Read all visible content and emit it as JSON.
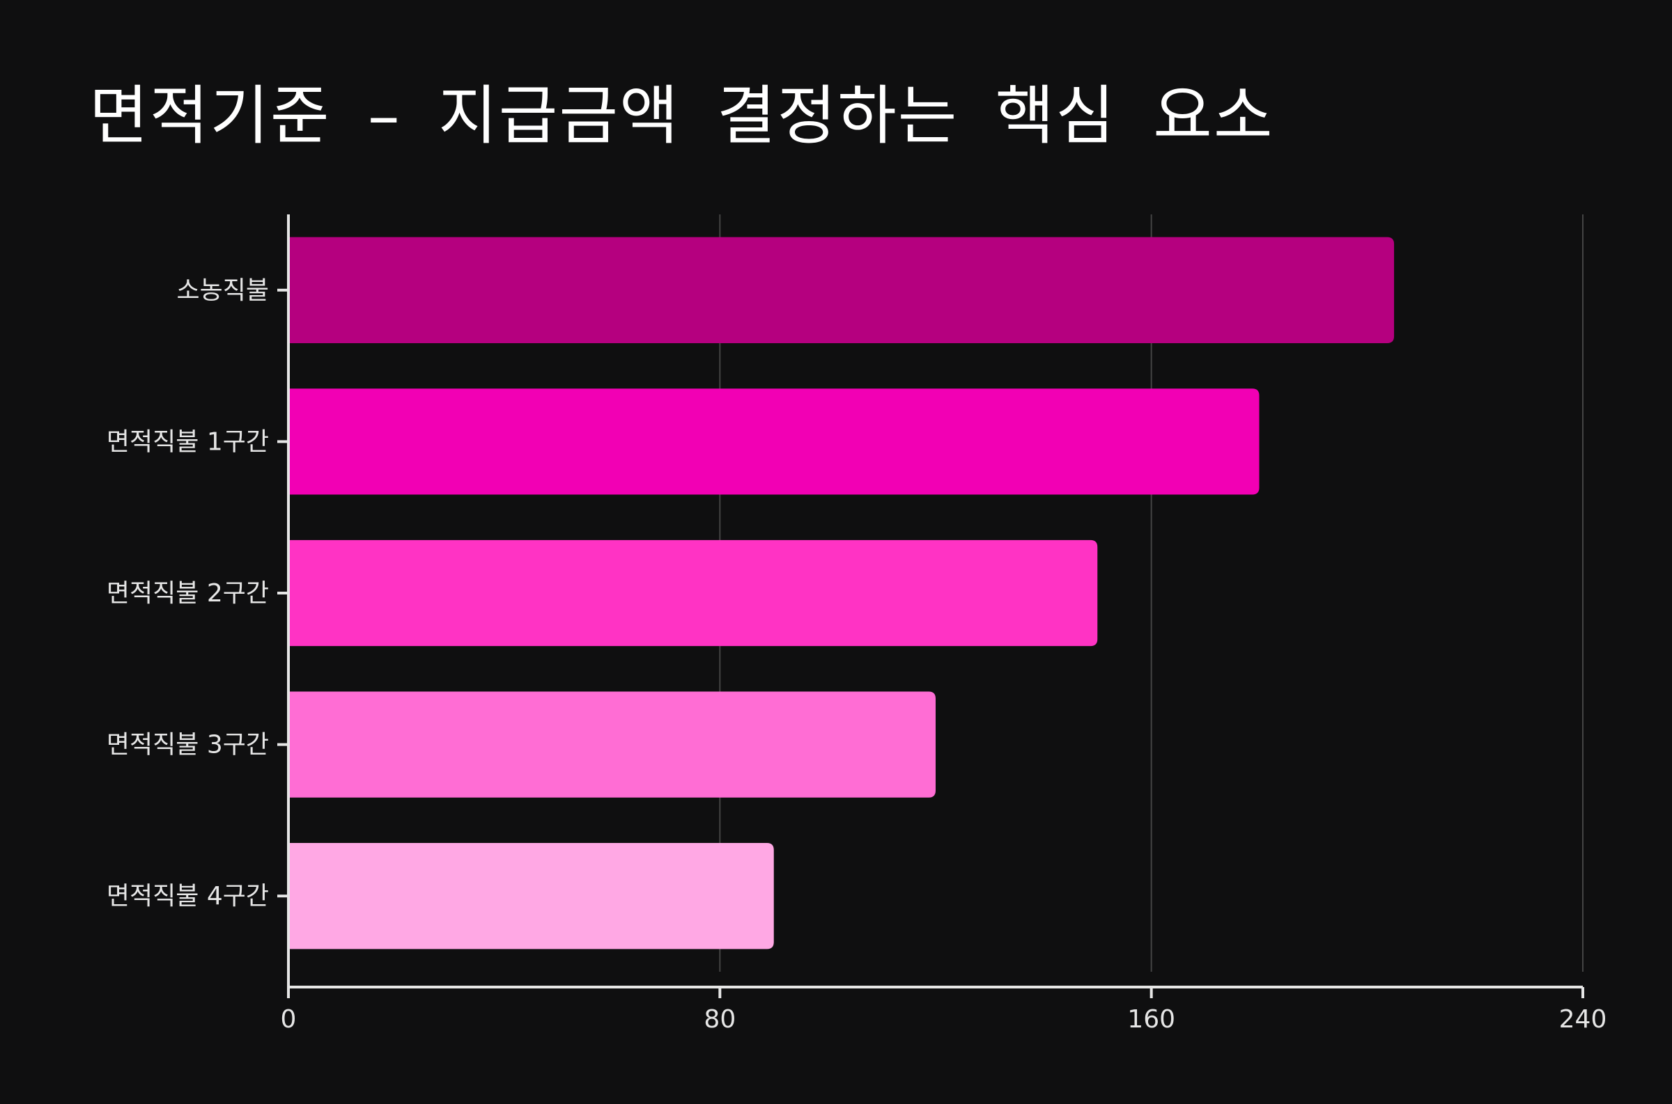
{
  "chart_data": {
    "type": "bar",
    "orientation": "horizontal",
    "title": "면적기준 – 지급금액 결정하는 핵심 요소",
    "xlabel": "",
    "ylabel": "",
    "categories": [
      "소농직불",
      "면적직불 1구간",
      "면적직불 2구간",
      "면적직불 3구간",
      "면적직불 4구간"
    ],
    "values": [
      205,
      180,
      150,
      120,
      90
    ],
    "bar_colors": [
      "#b5007f",
      "#f200b4",
      "#ff33c4",
      "#ff6dd4",
      "#ffa8e4"
    ],
    "xlim": [
      0,
      240
    ],
    "x_ticks": [
      0,
      80,
      160,
      240
    ],
    "grid": "vertical",
    "legend": "none"
  },
  "colors": {
    "background": "#0f0f10",
    "axis": "#e6e6e6",
    "grid": "#444444",
    "text": "#ffffff"
  }
}
